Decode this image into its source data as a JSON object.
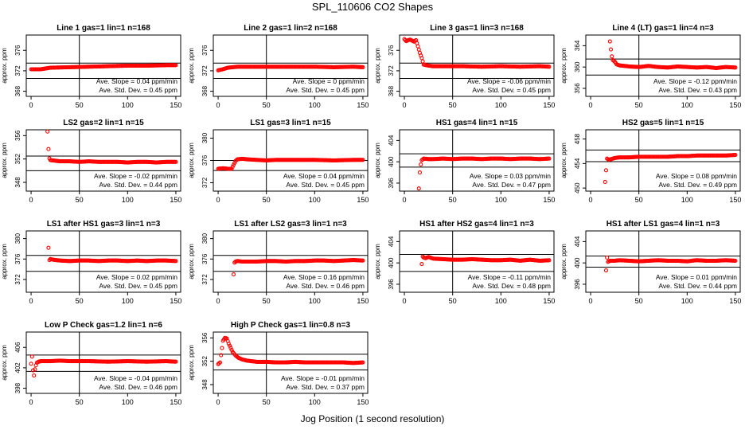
{
  "title": "SPL_110606  CO2 Shapes",
  "xlabel": "Jog Position (1 second resolution)",
  "colors": {
    "points": "#ff0000",
    "frame": "#000000"
  },
  "chart_data": [
    {
      "type": "scatter",
      "title": "Line 1 gas=1 lin=1 n=168",
      "ylabel": "approx. ppm",
      "xlim": [
        -5,
        155
      ],
      "ylim": [
        367,
        379
      ],
      "yticks": [
        368,
        372,
        376
      ],
      "xticks": [
        0,
        50,
        100,
        150
      ],
      "hlines": [
        373.5,
        370.5
      ],
      "vline": 50,
      "slope": "Ave. Slope =  0.04  ppm/min",
      "stddev": "Ave. Std. Dev. =  0.45  ppm",
      "x": [
        0,
        10,
        20,
        40,
        60,
        80,
        100,
        120,
        140,
        150
      ],
      "y": [
        372.3,
        372.3,
        372.6,
        372.7,
        372.8,
        372.9,
        373.0,
        373.0,
        373.1,
        373.1
      ]
    },
    {
      "type": "scatter",
      "title": "Line 2 gas=1 lin=2 n=168",
      "ylabel": "approx. ppm",
      "xlim": [
        -5,
        155
      ],
      "ylim": [
        367,
        379
      ],
      "yticks": [
        368,
        372,
        376
      ],
      "xticks": [
        0,
        50,
        100,
        150
      ],
      "hlines": [
        373.5,
        370.5
      ],
      "vline": 50,
      "slope": "Ave. Slope =  0  ppm/min",
      "stddev": "Ave. Std. Dev. =  0.45  ppm",
      "x": [
        0,
        5,
        10,
        15,
        20,
        40,
        60,
        80,
        100,
        120,
        140,
        150
      ],
      "y": [
        372.1,
        372.3,
        372.6,
        372.7,
        372.8,
        372.8,
        372.8,
        372.8,
        372.8,
        372.7,
        372.8,
        372.7
      ]
    },
    {
      "type": "scatter",
      "title": "Line 3 gas=1 lin=3 n=168",
      "ylabel": "approx. ppm",
      "xlim": [
        -5,
        155
      ],
      "ylim": [
        367,
        379
      ],
      "yticks": [
        368,
        372,
        376
      ],
      "xticks": [
        0,
        50,
        100,
        150
      ],
      "hlines": [
        373.5,
        370.5
      ],
      "vline": 50,
      "slope": "Ave. Slope =  -0.06  ppm/min",
      "stddev": "Ave. Std. Dev. =  0.45  ppm",
      "x": [
        0,
        2,
        4,
        6,
        8,
        10,
        12,
        14,
        16,
        18,
        20,
        25,
        30,
        40,
        60,
        80,
        100,
        120,
        140,
        150
      ],
      "y": [
        378.2,
        377.8,
        378.0,
        378.1,
        377.9,
        377.7,
        378.0,
        376.8,
        375.5,
        374.5,
        373.2,
        373.0,
        372.9,
        372.9,
        372.9,
        372.8,
        372.9,
        372.8,
        372.9,
        372.8
      ]
    },
    {
      "type": "scatter",
      "title": "Line 4 (LT) gas=1 lin=4 n=3",
      "ylabel": "approx. ppm",
      "xlim": [
        -5,
        155
      ],
      "ylim": [
        354.5,
        366
      ],
      "yticks": [
        356,
        360,
        364
      ],
      "xticks": [
        0,
        50,
        100,
        150
      ],
      "hlines": [
        361.5,
        358.5
      ],
      "vline": 50,
      "slope": "Ave. Slope =  -0.12  ppm/min",
      "stddev": "Ave. Std. Dev. =  0.43  ppm",
      "x": [
        20,
        21,
        22,
        23,
        25,
        27,
        30,
        35,
        40,
        50,
        60,
        70,
        80,
        90,
        100,
        110,
        120,
        130,
        140,
        150
      ],
      "y": [
        364.8,
        363.3,
        362.0,
        361.3,
        361.0,
        360.5,
        360.3,
        360.2,
        360.1,
        360.0,
        360.2,
        360.0,
        359.9,
        360.1,
        360.0,
        359.9,
        360.0,
        359.8,
        360.0,
        359.9
      ]
    },
    {
      "type": "scatter",
      "title": "LS2 gas=2 lin=1 n=15",
      "ylabel": "approx. ppm",
      "xlim": [
        -5,
        155
      ],
      "ylim": [
        346.5,
        357
      ],
      "yticks": [
        348,
        352,
        356
      ],
      "xticks": [
        0,
        50,
        100,
        150
      ],
      "hlines": [
        352.5,
        350.0
      ],
      "vline": 50,
      "slope": "Ave. Slope =  -0.02  ppm/min",
      "stddev": "Ave. Std. Dev. =  0.44  ppm",
      "x": [
        17,
        18,
        19,
        20,
        25,
        30,
        40,
        50,
        60,
        70,
        80,
        90,
        100,
        110,
        120,
        130,
        140,
        150
      ],
      "y": [
        356.7,
        353.7,
        352.1,
        351.8,
        351.7,
        351.6,
        351.6,
        351.5,
        351.6,
        351.5,
        351.5,
        351.5,
        351.4,
        351.5,
        351.5,
        351.4,
        351.5,
        351.5
      ]
    },
    {
      "type": "scatter",
      "title": "LS1 gas=3 lin=1 n=15",
      "ylabel": "approx. ppm",
      "xlim": [
        -5,
        155
      ],
      "ylim": [
        370.5,
        381.5
      ],
      "yticks": [
        372,
        376,
        380
      ],
      "xticks": [
        0,
        50,
        100,
        150
      ],
      "hlines": [
        376.0,
        374.2
      ],
      "vline": 50,
      "slope": "Ave. Slope =  0.04  ppm/min",
      "stddev": "Ave. Std. Dev. =  0.45  ppm",
      "x": [
        0,
        5,
        10,
        14,
        16,
        18,
        20,
        25,
        30,
        40,
        50,
        60,
        80,
        100,
        120,
        140,
        150
      ],
      "y": [
        374.5,
        374.6,
        374.5,
        374.5,
        375.2,
        375.9,
        376.2,
        376.3,
        376.2,
        376.1,
        376.0,
        376.1,
        376.1,
        376.1,
        376.0,
        376.1,
        376.1
      ]
    },
    {
      "type": "scatter",
      "title": "HS1 gas=4 lin=1 n=15",
      "ylabel": "approx. ppm",
      "xlim": [
        -5,
        155
      ],
      "ylim": [
        394.5,
        406
      ],
      "yticks": [
        396,
        400,
        404
      ],
      "xticks": [
        0,
        50,
        100,
        150
      ],
      "hlines": [
        401.5,
        399.0
      ],
      "vline": 50,
      "slope": "Ave. Slope =  0.03  ppm/min",
      "stddev": "Ave. Std. Dev. =  0.47  ppm",
      "x": [
        15,
        16,
        17,
        18,
        20,
        25,
        30,
        40,
        50,
        60,
        70,
        80,
        90,
        100,
        110,
        120,
        130,
        140,
        150
      ],
      "y": [
        395.0,
        398.0,
        399.5,
        400.3,
        400.6,
        400.5,
        400.5,
        400.6,
        400.5,
        400.6,
        400.6,
        400.5,
        400.6,
        400.6,
        400.5,
        400.6,
        400.6,
        400.5,
        400.6
      ]
    },
    {
      "type": "scatter",
      "title": "HS2 gas=5 lin=1 n=15",
      "ylabel": "approx. ppm",
      "xlim": [
        -5,
        155
      ],
      "ylim": [
        449.5,
        459.5
      ],
      "yticks": [
        450,
        454,
        458
      ],
      "xticks": [
        0,
        50,
        100,
        150
      ],
      "hlines": [
        456.2,
        454.3
      ],
      "vline": 50,
      "slope": "Ave. Slope =  0.08  ppm/min",
      "stddev": "Ave. Std. Dev. =  0.49  ppm",
      "x": [
        15,
        17,
        19,
        21,
        25,
        30,
        40,
        50,
        60,
        70,
        80,
        90,
        100,
        110,
        120,
        130,
        140,
        150
      ],
      "y": [
        451.0,
        454.8,
        454.6,
        454.7,
        454.9,
        455.0,
        455.0,
        455.1,
        455.1,
        455.1,
        455.1,
        455.2,
        455.2,
        455.3,
        455.3,
        455.3,
        455.3,
        455.4
      ]
    },
    {
      "type": "scatter",
      "title": "LS1 after HS1 gas=3 lin=1 n=3",
      "ylabel": "approx. ppm",
      "xlim": [
        -5,
        155
      ],
      "ylim": [
        369.5,
        381.5
      ],
      "yticks": [
        372,
        376,
        380
      ],
      "xticks": [
        0,
        50,
        100,
        150
      ],
      "hlines": [
        376.7,
        373.6
      ],
      "vline": 50,
      "slope": "Ave. Slope =  0.02  ppm/min",
      "stddev": "Ave. Std. Dev. =  0.45  ppm",
      "x": [
        18,
        19,
        20,
        22,
        25,
        30,
        40,
        50,
        60,
        70,
        80,
        90,
        100,
        110,
        120,
        130,
        140,
        150
      ],
      "y": [
        378.2,
        375.8,
        376.0,
        375.9,
        375.8,
        375.7,
        375.6,
        375.7,
        375.7,
        375.6,
        375.7,
        375.7,
        375.6,
        375.7,
        375.6,
        375.7,
        375.7,
        375.6
      ]
    },
    {
      "type": "scatter",
      "title": "LS1 after LS2 gas=3 lin=1 n=3",
      "ylabel": "approx. ppm",
      "xlim": [
        -5,
        155
      ],
      "ylim": [
        369.5,
        381.5
      ],
      "yticks": [
        372,
        376,
        380
      ],
      "xticks": [
        0,
        50,
        100,
        150
      ],
      "hlines": [
        376.7,
        373.6
      ],
      "vline": 50,
      "slope": "Ave. Slope =  0.16  ppm/min",
      "stddev": "Ave. Std. Dev. =  0.46  ppm",
      "x": [
        16,
        17,
        18,
        20,
        25,
        30,
        40,
        50,
        60,
        70,
        80,
        90,
        100,
        110,
        120,
        130,
        140,
        150
      ],
      "y": [
        373.0,
        375.3,
        375.5,
        375.6,
        375.5,
        375.5,
        375.5,
        375.6,
        375.6,
        375.5,
        375.6,
        375.6,
        375.7,
        375.7,
        375.6,
        375.7,
        375.8,
        375.7
      ]
    },
    {
      "type": "scatter",
      "title": "HS1 after HS2 gas=4 lin=1 n=3",
      "ylabel": "approx. ppm",
      "xlim": [
        -5,
        155
      ],
      "ylim": [
        394.5,
        406
      ],
      "yticks": [
        396,
        400,
        404
      ],
      "xticks": [
        0,
        50,
        100,
        150
      ],
      "hlines": [
        401.6,
        398.4
      ],
      "vline": 50,
      "slope": "Ave. Slope =  -0.11  ppm/min",
      "stddev": "Ave. Std. Dev. =  0.48  ppm",
      "x": [
        18,
        19,
        20,
        22,
        25,
        30,
        40,
        50,
        60,
        70,
        80,
        90,
        100,
        110,
        120,
        130,
        140,
        150
      ],
      "y": [
        399.8,
        401.2,
        401.0,
        400.9,
        401.1,
        400.8,
        400.7,
        400.6,
        400.6,
        400.7,
        400.6,
        400.5,
        400.5,
        400.6,
        400.4,
        400.6,
        400.4,
        400.5
      ]
    },
    {
      "type": "scatter",
      "title": "HS1 after LS1 gas=4 lin=1 n=3",
      "ylabel": "approx. ppm",
      "xlim": [
        -5,
        155
      ],
      "ylim": [
        394.5,
        406
      ],
      "yticks": [
        396,
        400,
        404
      ],
      "xticks": [
        0,
        50,
        100,
        150
      ],
      "hlines": [
        401.3,
        399.2
      ],
      "vline": 50,
      "slope": "Ave. Slope =  0.01  ppm/min",
      "stddev": "Ave. Std. Dev. =  0.44  ppm",
      "x": [
        16,
        17,
        18,
        20,
        25,
        30,
        40,
        50,
        60,
        70,
        80,
        90,
        100,
        110,
        120,
        130,
        140,
        150
      ],
      "y": [
        398.6,
        401.0,
        400.2,
        400.4,
        400.4,
        400.5,
        400.4,
        400.3,
        400.4,
        400.5,
        400.4,
        400.4,
        400.3,
        400.5,
        400.4,
        400.4,
        400.5,
        400.4
      ]
    },
    {
      "type": "scatter",
      "title": "Low P Check gas=1.2 lin=1 n=6",
      "ylabel": "approx. ppm",
      "xlim": [
        -5,
        155
      ],
      "ylim": [
        397,
        409
      ],
      "yticks": [
        398,
        402,
        406
      ],
      "xticks": [
        0,
        50,
        100,
        150
      ],
      "hlines": [
        404.5,
        401.3
      ],
      "vline": 50,
      "slope": "Ave. Slope =  -0.04  ppm/min",
      "stddev": "Ave. Std. Dev. =  0.46  ppm",
      "x": [
        0,
        1,
        2,
        3,
        4,
        5,
        6,
        8,
        10,
        15,
        20,
        30,
        40,
        50,
        60,
        80,
        100,
        120,
        140,
        150
      ],
      "y": [
        402.8,
        404.2,
        401.5,
        400.5,
        401.7,
        402.5,
        403.0,
        403.2,
        403.3,
        403.3,
        403.3,
        403.4,
        403.3,
        403.3,
        403.3,
        403.2,
        403.3,
        403.2,
        403.3,
        403.2
      ]
    },
    {
      "type": "scatter",
      "title": "High P Check gas=1 lin=0.8 n=3",
      "ylabel": "approx. ppm",
      "xlim": [
        -5,
        155
      ],
      "ylim": [
        346.5,
        357
      ],
      "yticks": [
        348,
        352,
        356
      ],
      "xticks": [
        0,
        50,
        100,
        150
      ],
      "hlines": [
        353.2,
        350.5
      ],
      "vline": 50,
      "slope": "Ave. Slope =  -0.01  ppm/min",
      "stddev": "Ave. Std. Dev. =  0.37  ppm",
      "x": [
        0,
        2,
        5,
        7,
        9,
        11,
        13,
        15,
        18,
        21,
        25,
        30,
        35,
        40,
        50,
        60,
        70,
        80,
        90,
        100,
        110,
        120,
        130,
        140,
        150
      ],
      "y": [
        351.5,
        351.8,
        355.5,
        356.0,
        355.9,
        355.0,
        354.3,
        353.6,
        353.0,
        352.6,
        352.3,
        352.1,
        352.0,
        351.9,
        351.9,
        351.8,
        351.8,
        351.9,
        351.8,
        351.8,
        351.8,
        351.8,
        351.8,
        351.7,
        351.8
      ]
    }
  ]
}
